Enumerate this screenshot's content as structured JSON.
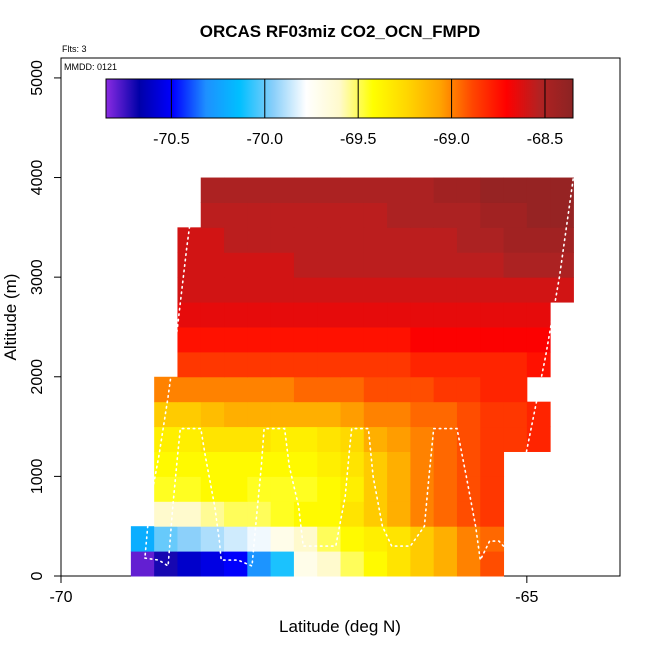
{
  "chart_data": {
    "type": "heatmap",
    "title": "ORCAS RF03miz CO2_OCN_FMPD",
    "xlabel": "Latitude (deg N)",
    "ylabel": "Altitude (m)",
    "annotations": {
      "flights": "Flts: 3",
      "date": "MMDD: 0121"
    },
    "xlim": [
      -70,
      -64.0
    ],
    "ylim": [
      0,
      5200
    ],
    "xticks": [
      -70,
      -65
    ],
    "xtick_labels": [
      "-70",
      "-65"
    ],
    "yticks": [
      0,
      1000,
      2000,
      3000,
      4000,
      5000
    ],
    "ytick_labels": [
      "0",
      "1000",
      "2000",
      "3000",
      "4000",
      "5000"
    ],
    "colorbar": {
      "range": [
        -70.85,
        -68.35
      ],
      "ticks": [
        -70.5,
        -70.0,
        -69.5,
        -69.0,
        -68.5
      ],
      "tick_labels": [
        "-70.5",
        "-70.0",
        "-69.5",
        "-69.0",
        "-68.5"
      ],
      "colors": [
        "#8a2be2",
        "#0000a8",
        "#0000ff",
        "#1e90ff",
        "#00bfff",
        "#87cefa",
        "#ffffff",
        "#fffacd",
        "#ffff00",
        "#ffd700",
        "#ffa500",
        "#ff4500",
        "#ff0000",
        "#b22222",
        "#8b2323"
      ]
    },
    "grid": {
      "x0": -69.25,
      "dx": 0.25,
      "y0": 0,
      "dy": 250,
      "note_rows_bottom_to_top": "value per (row,col)"
    },
    "rows": [
      {
        "y": 0,
        "start": -69.25,
        "values": [
          -70.8,
          -70.7,
          -70.6,
          -70.55,
          -70.5,
          -70.3,
          -70.1,
          -69.7,
          -69.6,
          -69.5,
          -69.4,
          -69.3,
          -69.2,
          -69.1,
          -69.0,
          -68.9
        ]
      },
      {
        "y": 250,
        "start": -69.25,
        "values": [
          -70.2,
          -70.0,
          -69.95,
          -69.9,
          -69.85,
          -69.8,
          -69.7,
          -69.6,
          -69.5,
          -69.4,
          -69.35,
          -69.3,
          -69.2,
          -69.1,
          -69.0,
          -68.95
        ]
      },
      {
        "y": 500,
        "start": -69.0,
        "values": [
          -69.6,
          -69.6,
          -69.55,
          -69.5,
          -69.5,
          -69.45,
          -69.4,
          -69.4,
          -69.3,
          -69.2,
          -69.1,
          -69.0,
          -68.95,
          -68.9,
          -68.85
        ]
      },
      {
        "y": 750,
        "start": -69.0,
        "values": [
          -69.45,
          -69.45,
          -69.4,
          -69.4,
          -69.45,
          -69.45,
          -69.45,
          -69.4,
          -69.35,
          -69.2,
          -69.1,
          -69.0,
          -68.95,
          -68.9,
          -68.85
        ]
      },
      {
        "y": 1000,
        "start": -69.0,
        "values": [
          -69.4,
          -69.4,
          -69.4,
          -69.4,
          -69.4,
          -69.4,
          -69.4,
          -69.35,
          -69.3,
          -69.2,
          -69.1,
          -69.0,
          -68.95,
          -68.9,
          -68.85
        ]
      },
      {
        "y": 1250,
        "start": -69.0,
        "values": [
          -69.35,
          -69.35,
          -69.3,
          -69.3,
          -69.3,
          -69.35,
          -69.35,
          -69.3,
          -69.25,
          -69.1,
          -69.05,
          -69.0,
          -68.95,
          -68.9,
          -68.85,
          -68.85,
          -68.8
        ]
      },
      {
        "y": 1500,
        "start": -69.0,
        "values": [
          -69.2,
          -69.2,
          -69.15,
          -69.1,
          -69.1,
          -69.1,
          -69.1,
          -69.1,
          -69.05,
          -69.0,
          -69.0,
          -68.95,
          -68.95,
          -68.9,
          -68.85,
          -68.85,
          -68.8
        ]
      },
      {
        "y": 1750,
        "start": -69.0,
        "values": [
          -69.0,
          -69.0,
          -69.0,
          -69.0,
          -69.0,
          -69.0,
          -68.95,
          -68.95,
          -68.95,
          -68.9,
          -68.9,
          -68.9,
          -68.85,
          -68.85,
          -68.8,
          -68.8
        ]
      },
      {
        "y": 2000,
        "start": -68.75,
        "values": [
          -68.85,
          -68.85,
          -68.85,
          -68.85,
          -68.85,
          -68.85,
          -68.85,
          -68.85,
          -68.85,
          -68.85,
          -68.8,
          -68.8,
          -68.8,
          -68.8,
          -68.8,
          -68.75
        ]
      },
      {
        "y": 2250,
        "start": -68.75,
        "values": [
          -68.75,
          -68.75,
          -68.75,
          -68.75,
          -68.75,
          -68.75,
          -68.75,
          -68.75,
          -68.75,
          -68.75,
          -68.7,
          -68.7,
          -68.7,
          -68.7,
          -68.7,
          -68.7
        ]
      },
      {
        "y": 2500,
        "start": -68.75,
        "values": [
          -68.65,
          -68.65,
          -68.65,
          -68.65,
          -68.65,
          -68.65,
          -68.65,
          -68.65,
          -68.65,
          -68.65,
          -68.65,
          -68.65,
          -68.65,
          -68.65,
          -68.65,
          -68.65
        ]
      },
      {
        "y": 2750,
        "start": -68.75,
        "values": [
          -68.6,
          -68.6,
          -68.6,
          -68.6,
          -68.6,
          -68.6,
          -68.6,
          -68.6,
          -68.6,
          -68.6,
          -68.6,
          -68.6,
          -68.6,
          -68.6,
          -68.6,
          -68.6,
          -68.6
        ]
      },
      {
        "y": 3000,
        "start": -68.75,
        "values": [
          -68.6,
          -68.6,
          -68.6,
          -68.6,
          -68.6,
          -68.55,
          -68.55,
          -68.55,
          -68.55,
          -68.55,
          -68.55,
          -68.55,
          -68.55,
          -68.55,
          -68.5,
          -68.5,
          -68.5
        ]
      },
      {
        "y": 3250,
        "start": -68.75,
        "values": [
          -68.6,
          -68.6,
          -68.55,
          -68.55,
          -68.55,
          -68.55,
          -68.55,
          -68.55,
          -68.55,
          -68.55,
          -68.55,
          -68.55,
          -68.5,
          -68.5,
          -68.45,
          -68.45,
          -68.45
        ]
      },
      {
        "y": 3500,
        "start": -68.5,
        "values": [
          -68.55,
          -68.55,
          -68.55,
          -68.55,
          -68.55,
          -68.55,
          -68.55,
          -68.55,
          -68.5,
          -68.5,
          -68.5,
          -68.5,
          -68.45,
          -68.45,
          -68.4,
          -68.4
        ]
      },
      {
        "y": 3750,
        "start": -68.5,
        "values": [
          -68.5,
          -68.5,
          -68.5,
          -68.5,
          -68.5,
          -68.5,
          -68.5,
          -68.5,
          -68.5,
          -68.5,
          -68.45,
          -68.45,
          -68.4,
          -68.4,
          -68.4,
          -68.4
        ]
      }
    ],
    "flight_track": [
      [
        -69.1,
        180
      ],
      [
        -68.95,
        160
      ],
      [
        -68.85,
        100
      ],
      [
        -68.8,
        700
      ],
      [
        -68.75,
        1200
      ],
      [
        -68.72,
        1480
      ],
      [
        -68.5,
        1480
      ],
      [
        -68.45,
        1200
      ],
      [
        -68.35,
        700
      ],
      [
        -68.3,
        350
      ],
      [
        -68.28,
        160
      ],
      [
        -68.1,
        160
      ],
      [
        -67.95,
        100
      ],
      [
        -67.9,
        600
      ],
      [
        -67.85,
        1100
      ],
      [
        -67.82,
        1480
      ],
      [
        -67.6,
        1480
      ],
      [
        -67.55,
        1100
      ],
      [
        -67.45,
        700
      ],
      [
        -67.4,
        300
      ],
      [
        -67.2,
        300
      ],
      [
        -67.05,
        300
      ],
      [
        -66.95,
        800
      ],
      [
        -66.9,
        1300
      ],
      [
        -66.88,
        1480
      ],
      [
        -66.7,
        1480
      ],
      [
        -66.65,
        1000
      ],
      [
        -66.55,
        500
      ],
      [
        -66.45,
        300
      ],
      [
        -66.25,
        300
      ],
      [
        -66.1,
        500
      ],
      [
        -66.05,
        1000
      ],
      [
        -66.0,
        1480
      ],
      [
        -65.75,
        1480
      ],
      [
        -65.65,
        1000
      ],
      [
        -65.55,
        500
      ],
      [
        -65.5,
        160
      ],
      [
        -65.4,
        350
      ],
      [
        -65.3,
        350
      ],
      [
        -65.25,
        300
      ],
      [
        -65.1,
        800
      ],
      [
        -64.95,
        1500
      ],
      [
        -64.8,
        2200
      ],
      [
        -64.65,
        3000
      ],
      [
        -64.5,
        4000
      ]
    ],
    "flight_track_left": [
      [
        -68.55,
        4000
      ],
      [
        -68.65,
        3300
      ],
      [
        -68.75,
        2500
      ],
      [
        -68.85,
        1800
      ],
      [
        -68.95,
        1200
      ],
      [
        -69.05,
        700
      ],
      [
        -69.1,
        180
      ]
    ]
  }
}
